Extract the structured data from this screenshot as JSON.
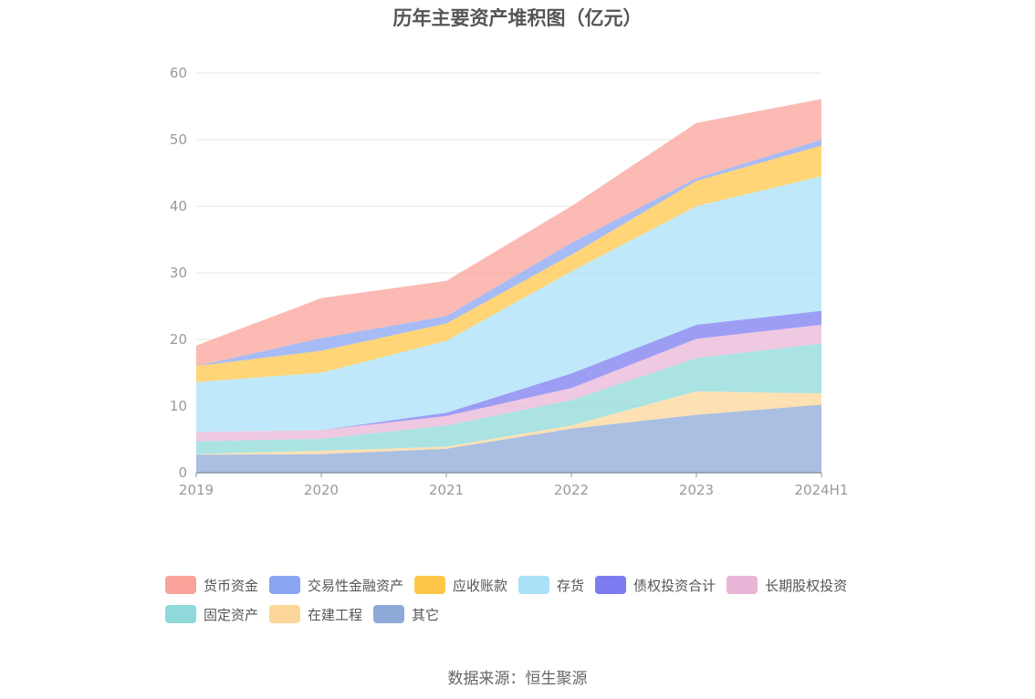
{
  "chart_data": {
    "type": "area",
    "stacked": true,
    "title": "历年主要资产堆积图（亿元）",
    "categories": [
      "2019",
      "2020",
      "2021",
      "2022",
      "2023",
      "2024H1"
    ],
    "ylim": [
      0,
      60
    ],
    "yticks": [
      0,
      10,
      20,
      30,
      40,
      50,
      60
    ],
    "grid": true,
    "legend_position": "bottom",
    "series": [
      {
        "name": "其它",
        "color": "#8faad8",
        "values": [
          2.7,
          2.8,
          3.6,
          6.6,
          8.7,
          10.2
        ]
      },
      {
        "name": "在建工程",
        "color": "#fdd79a",
        "values": [
          0.1,
          0.5,
          0.3,
          0.5,
          3.5,
          1.7
        ]
      },
      {
        "name": "固定资产",
        "color": "#8fd9da",
        "values": [
          1.9,
          1.8,
          3.2,
          3.8,
          5.0,
          7.5
        ]
      },
      {
        "name": "长期股权投资",
        "color": "#e9b6d8",
        "values": [
          1.4,
          1.3,
          1.4,
          1.8,
          2.9,
          2.8
        ]
      },
      {
        "name": "债权投资合计",
        "color": "#7c7cf0",
        "values": [
          0.0,
          0.0,
          0.5,
          2.2,
          2.1,
          2.1
        ]
      },
      {
        "name": "存货",
        "color": "#a9e1f9",
        "values": [
          7.5,
          8.6,
          10.8,
          15.3,
          17.8,
          20.2
        ]
      },
      {
        "name": "应收账款",
        "color": "#ffc74a",
        "values": [
          2.4,
          3.3,
          2.6,
          2.5,
          3.8,
          4.6
        ]
      },
      {
        "name": "交易性金融资产",
        "color": "#8aa6f3",
        "values": [
          0.0,
          1.9,
          1.1,
          1.8,
          0.4,
          0.9
        ]
      },
      {
        "name": "货币资金",
        "color": "#f9a39a",
        "values": [
          3.1,
          6.0,
          5.3,
          5.5,
          8.3,
          6.1
        ]
      }
    ]
  },
  "legend_order": [
    "货币资金",
    "交易性金融资产",
    "应收账款",
    "存货",
    "债权投资合计",
    "长期股权投资",
    "固定资产",
    "在建工程",
    "其它"
  ],
  "legend_rows": [
    [
      "货币资金",
      "交易性金融资产",
      "应收账款",
      "存货",
      "债权投资合计",
      "长期股权投资"
    ],
    [
      "固定资产",
      "在建工程",
      "其它"
    ]
  ],
  "source": "数据来源：恒生聚源"
}
